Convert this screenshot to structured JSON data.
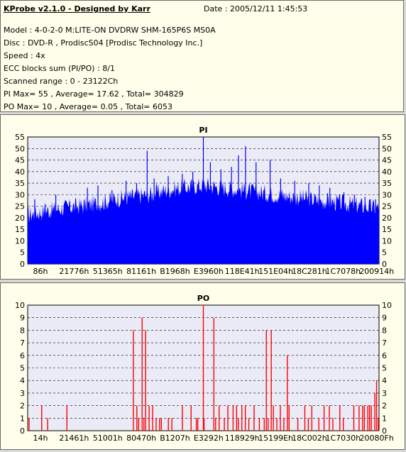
{
  "header": {
    "title": "KProbe v2.1.0 - Designed by Karr",
    "date": "Date : 2005/12/11 1:45:53",
    "lines": [
      "Model : 4-0-2-0 M:LITE-ON DVDRW SHM-165P6S MS0A",
      "Disc : DVD-R , ProdiscS04   [Prodisc Technology Inc.]",
      "Speed : 4x",
      "ECC blocks sum (PI/PO) : 8/1",
      "Scanned range : 0 - 23122Ch",
      "PI Max= 55 , Average= 17.62 , Total= 304829",
      "PO Max= 10 , Average= 0.05 , Total= 6053"
    ]
  },
  "colors": {
    "pi": "#0000ff",
    "po": "#ff0000",
    "plot_bg": "#ebebf7",
    "panel_bg": "#fffeea"
  },
  "chart_data": [
    {
      "type": "area",
      "title": "PI",
      "ylim": [
        0,
        55
      ],
      "yticks": [
        0,
        5,
        10,
        15,
        20,
        25,
        30,
        35,
        40,
        45,
        50,
        55
      ],
      "xlabels": [
        "86h",
        "21776h",
        "51365h",
        "81161h",
        "B1968h",
        "E3960h",
        "118E41h",
        "151E04h",
        "18C281h",
        "1C7078h",
        "200914h"
      ],
      "envelope": [
        [
          0,
          20
        ],
        [
          0.03,
          21
        ],
        [
          0.06,
          22
        ],
        [
          0.1,
          23
        ],
        [
          0.15,
          24
        ],
        [
          0.2,
          25
        ],
        [
          0.25,
          27
        ],
        [
          0.3,
          28
        ],
        [
          0.35,
          29
        ],
        [
          0.4,
          31
        ],
        [
          0.45,
          32
        ],
        [
          0.5,
          33
        ],
        [
          0.55,
          32
        ],
        [
          0.6,
          31
        ],
        [
          0.65,
          30
        ],
        [
          0.7,
          29
        ],
        [
          0.75,
          28
        ],
        [
          0.8,
          27
        ],
        [
          0.85,
          26
        ],
        [
          0.9,
          25
        ],
        [
          0.95,
          24
        ],
        [
          1.0,
          23
        ]
      ],
      "spikes": [
        [
          0.02,
          28
        ],
        [
          0.05,
          26
        ],
        [
          0.08,
          30
        ],
        [
          0.12,
          27
        ],
        [
          0.17,
          33
        ],
        [
          0.2,
          34
        ],
        [
          0.24,
          32
        ],
        [
          0.28,
          36
        ],
        [
          0.31,
          35
        ],
        [
          0.34,
          49
        ],
        [
          0.36,
          37
        ],
        [
          0.4,
          38
        ],
        [
          0.44,
          39
        ],
        [
          0.47,
          40
        ],
        [
          0.5,
          55
        ],
        [
          0.52,
          44
        ],
        [
          0.55,
          41
        ],
        [
          0.58,
          42
        ],
        [
          0.6,
          47
        ],
        [
          0.62,
          51
        ],
        [
          0.65,
          44
        ],
        [
          0.69,
          45
        ],
        [
          0.72,
          37
        ],
        [
          0.76,
          36
        ],
        [
          0.8,
          35
        ],
        [
          0.83,
          34
        ],
        [
          0.86,
          33
        ],
        [
          0.9,
          31
        ],
        [
          0.93,
          30
        ],
        [
          0.96,
          29
        ],
        [
          0.99,
          28
        ]
      ]
    },
    {
      "type": "bar",
      "title": "PO",
      "ylim": [
        0,
        10
      ],
      "yticks": [
        0,
        1,
        2,
        3,
        4,
        5,
        6,
        7,
        8,
        9,
        10
      ],
      "xlabels": [
        "14h",
        "21461h",
        "51001h",
        "80470h",
        "B1207h",
        "E3292h",
        "118929h",
        "15199Eh",
        "18C002h",
        "1C7030h",
        "20080Fh"
      ],
      "bars": [
        [
          0.002,
          1
        ],
        [
          0.038,
          2
        ],
        [
          0.055,
          1
        ],
        [
          0.11,
          2
        ],
        [
          0.3,
          8
        ],
        [
          0.31,
          2
        ],
        [
          0.315,
          1
        ],
        [
          0.325,
          9
        ],
        [
          0.33,
          1
        ],
        [
          0.335,
          8
        ],
        [
          0.345,
          2
        ],
        [
          0.355,
          2
        ],
        [
          0.365,
          1
        ],
        [
          0.375,
          1
        ],
        [
          0.38,
          1
        ],
        [
          0.4,
          1
        ],
        [
          0.41,
          1
        ],
        [
          0.44,
          2
        ],
        [
          0.465,
          2
        ],
        [
          0.48,
          1
        ],
        [
          0.484,
          1
        ],
        [
          0.5,
          10
        ],
        [
          0.502,
          1
        ],
        [
          0.53,
          9
        ],
        [
          0.535,
          1
        ],
        [
          0.545,
          2
        ],
        [
          0.56,
          1
        ],
        [
          0.57,
          2
        ],
        [
          0.585,
          2
        ],
        [
          0.595,
          2
        ],
        [
          0.6,
          1
        ],
        [
          0.61,
          2
        ],
        [
          0.62,
          2
        ],
        [
          0.63,
          1
        ],
        [
          0.645,
          2
        ],
        [
          0.66,
          1
        ],
        [
          0.674,
          1
        ],
        [
          0.68,
          8
        ],
        [
          0.685,
          1
        ],
        [
          0.694,
          8
        ],
        [
          0.7,
          2
        ],
        [
          0.71,
          1
        ],
        [
          0.72,
          2
        ],
        [
          0.73,
          1
        ],
        [
          0.74,
          6
        ],
        [
          0.745,
          2
        ],
        [
          0.77,
          1
        ],
        [
          0.79,
          2
        ],
        [
          0.8,
          1
        ],
        [
          0.81,
          2
        ],
        [
          0.83,
          1
        ],
        [
          0.845,
          2
        ],
        [
          0.86,
          2
        ],
        [
          0.87,
          1
        ],
        [
          0.89,
          2
        ],
        [
          0.9,
          1
        ],
        [
          0.93,
          2
        ],
        [
          0.945,
          2
        ],
        [
          0.955,
          2
        ],
        [
          0.96,
          2
        ],
        [
          0.97,
          2
        ],
        [
          0.975,
          2
        ],
        [
          0.98,
          2
        ],
        [
          0.99,
          3
        ],
        [
          0.995,
          4
        ],
        [
          1.0,
          1
        ]
      ]
    }
  ]
}
